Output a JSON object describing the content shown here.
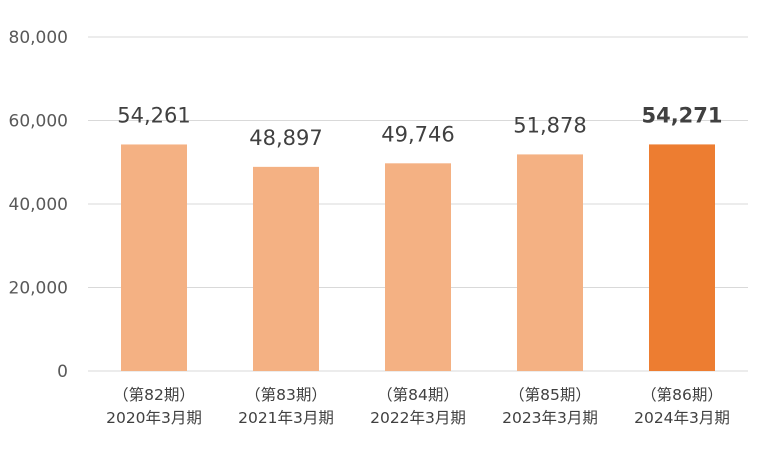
{
  "chart_data": {
    "type": "bar",
    "categories": [
      [
        "（第82期）",
        "2020年3月期"
      ],
      [
        "（第83期）",
        "2021年3月期"
      ],
      [
        "（第84期）",
        "2022年3月期"
      ],
      [
        "（第85期）",
        "2023年3月期"
      ],
      [
        "（第86期）",
        "2024年3月期"
      ]
    ],
    "values": [
      54261,
      48897,
      49746,
      51878,
      54271
    ],
    "value_labels": [
      "54,261",
      "48,897",
      "49,746",
      "51,878",
      "54,271"
    ],
    "highlight_index": 4,
    "ylim": [
      0,
      80000
    ],
    "yticks": [
      0,
      20000,
      40000,
      60000,
      80000
    ],
    "ytick_labels": [
      "0",
      "20,000",
      "40,000",
      "60,000",
      "80,000"
    ],
    "grid": true,
    "colors": {
      "bar": "#f4b183",
      "highlight": "#ed7d31",
      "grid": "#d9d9d9"
    }
  }
}
